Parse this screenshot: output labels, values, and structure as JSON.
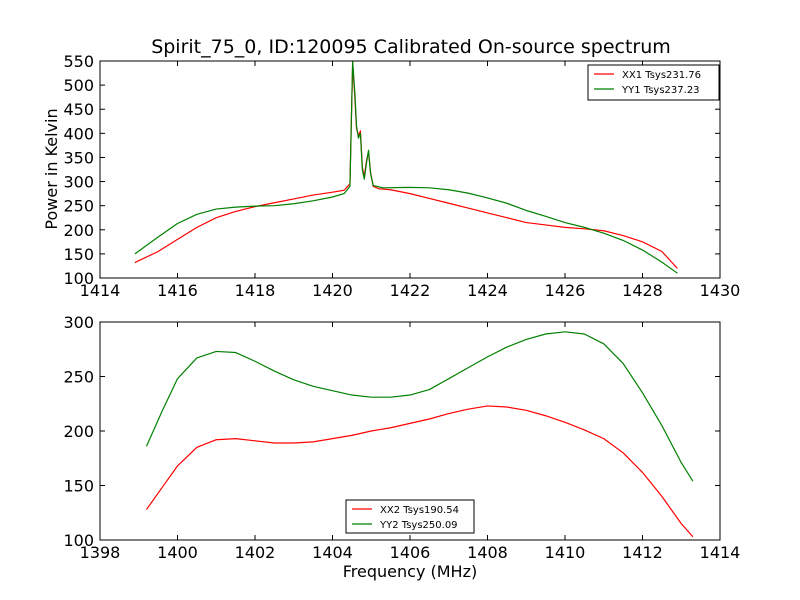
{
  "chart_data": [
    {
      "type": "line",
      "title": "Spirit_75_0, ID:120095 Calibrated On-source spectrum",
      "xlabel": "",
      "ylabel": "Power in Kelvin",
      "xlim": [
        1414,
        1430
      ],
      "ylim": [
        100,
        550
      ],
      "xticks": [
        "1414",
        "1416",
        "1418",
        "1420",
        "1422",
        "1424",
        "1426",
        "1428",
        "1430"
      ],
      "yticks": [
        "100",
        "150",
        "200",
        "250",
        "300",
        "350",
        "400",
        "450",
        "500",
        "550"
      ],
      "grid": false,
      "legend_position": "top-right",
      "series": [
        {
          "name": "XX1 Tsys231.76",
          "color": "#ff0000",
          "points": [
            [
              1414.9,
              132
            ],
            [
              1415.5,
              155
            ],
            [
              1416,
              180
            ],
            [
              1416.5,
              205
            ],
            [
              1417,
              225
            ],
            [
              1417.5,
              238
            ],
            [
              1418,
              248
            ],
            [
              1418.5,
              256
            ],
            [
              1419,
              264
            ],
            [
              1419.5,
              272
            ],
            [
              1420,
              278
            ],
            [
              1420.3,
              282
            ],
            [
              1420.45,
              295
            ],
            [
              1420.52,
              545
            ],
            [
              1420.58,
              470
            ],
            [
              1420.62,
              410
            ],
            [
              1420.67,
              395
            ],
            [
              1420.72,
              405
            ],
            [
              1420.77,
              330
            ],
            [
              1420.82,
              310
            ],
            [
              1420.88,
              345
            ],
            [
              1420.93,
              360
            ],
            [
              1420.98,
              320
            ],
            [
              1421.05,
              290
            ],
            [
              1421.2,
              285
            ],
            [
              1421.5,
              283
            ],
            [
              1422,
              275
            ],
            [
              1422.5,
              265
            ],
            [
              1423,
              255
            ],
            [
              1423.5,
              245
            ],
            [
              1424,
              235
            ],
            [
              1424.5,
              225
            ],
            [
              1425,
              215
            ],
            [
              1425.5,
              210
            ],
            [
              1426,
              205
            ],
            [
              1426.5,
              202
            ],
            [
              1427,
              198
            ],
            [
              1427.5,
              188
            ],
            [
              1428,
              175
            ],
            [
              1428.5,
              155
            ],
            [
              1428.9,
              120
            ]
          ]
        },
        {
          "name": "YY1 Tsys237.23",
          "color": "#008000",
          "points": [
            [
              1414.9,
              150
            ],
            [
              1415.5,
              185
            ],
            [
              1416,
              213
            ],
            [
              1416.5,
              232
            ],
            [
              1417,
              243
            ],
            [
              1417.5,
              247
            ],
            [
              1418,
              249
            ],
            [
              1418.5,
              250
            ],
            [
              1419,
              254
            ],
            [
              1419.5,
              260
            ],
            [
              1420,
              268
            ],
            [
              1420.3,
              275
            ],
            [
              1420.45,
              290
            ],
            [
              1420.52,
              550
            ],
            [
              1420.58,
              480
            ],
            [
              1420.62,
              415
            ],
            [
              1420.67,
              390
            ],
            [
              1420.72,
              400
            ],
            [
              1420.77,
              325
            ],
            [
              1420.82,
              305
            ],
            [
              1420.88,
              340
            ],
            [
              1420.93,
              365
            ],
            [
              1420.98,
              318
            ],
            [
              1421.05,
              292
            ],
            [
              1421.3,
              287
            ],
            [
              1422,
              288
            ],
            [
              1422.5,
              287
            ],
            [
              1423,
              283
            ],
            [
              1423.5,
              276
            ],
            [
              1424,
              266
            ],
            [
              1424.5,
              255
            ],
            [
              1425,
              240
            ],
            [
              1425.5,
              228
            ],
            [
              1426,
              215
            ],
            [
              1426.5,
              205
            ],
            [
              1427,
              193
            ],
            [
              1427.5,
              178
            ],
            [
              1428,
              158
            ],
            [
              1428.5,
              133
            ],
            [
              1428.9,
              110
            ]
          ]
        }
      ]
    },
    {
      "type": "line",
      "title": "",
      "xlabel": "Frequency (MHz)",
      "ylabel": "",
      "xlim": [
        1398,
        1414
      ],
      "ylim": [
        100,
        300
      ],
      "xticks": [
        "1398",
        "1400",
        "1402",
        "1404",
        "1406",
        "1408",
        "1410",
        "1412",
        "1414"
      ],
      "yticks": [
        "100",
        "150",
        "200",
        "250",
        "300"
      ],
      "grid": false,
      "legend_position": "bottom-center",
      "series": [
        {
          "name": "XX2 Tsys190.54",
          "color": "#ff0000",
          "points": [
            [
              1399.2,
              128
            ],
            [
              1399.6,
              148
            ],
            [
              1400,
              168
            ],
            [
              1400.5,
              185
            ],
            [
              1401,
              192
            ],
            [
              1401.5,
              193
            ],
            [
              1402,
              191
            ],
            [
              1402.5,
              189
            ],
            [
              1403,
              189
            ],
            [
              1403.5,
              190
            ],
            [
              1404,
              193
            ],
            [
              1404.5,
              196
            ],
            [
              1405,
              200
            ],
            [
              1405.5,
              203
            ],
            [
              1406,
              207
            ],
            [
              1406.5,
              211
            ],
            [
              1407,
              216
            ],
            [
              1407.5,
              220
            ],
            [
              1408,
              223
            ],
            [
              1408.5,
              222
            ],
            [
              1409,
              219
            ],
            [
              1409.5,
              214
            ],
            [
              1410,
              208
            ],
            [
              1410.5,
              201
            ],
            [
              1411,
              193
            ],
            [
              1411.5,
              180
            ],
            [
              1412,
              162
            ],
            [
              1412.5,
              140
            ],
            [
              1413,
              115
            ],
            [
              1413.3,
              103
            ]
          ]
        },
        {
          "name": "YY2 Tsys250.09",
          "color": "#008000",
          "points": [
            [
              1399.2,
              186
            ],
            [
              1399.6,
              218
            ],
            [
              1400,
              248
            ],
            [
              1400.5,
              267
            ],
            [
              1401,
              273
            ],
            [
              1401.5,
              272
            ],
            [
              1402,
              264
            ],
            [
              1402.5,
              255
            ],
            [
              1403,
              247
            ],
            [
              1403.5,
              241
            ],
            [
              1404,
              237
            ],
            [
              1404.5,
              233
            ],
            [
              1405,
              231
            ],
            [
              1405.5,
              231
            ],
            [
              1406,
              233
            ],
            [
              1406.5,
              238
            ],
            [
              1407,
              248
            ],
            [
              1407.5,
              258
            ],
            [
              1408,
              268
            ],
            [
              1408.5,
              277
            ],
            [
              1409,
              284
            ],
            [
              1409.5,
              289
            ],
            [
              1410,
              291
            ],
            [
              1410.5,
              289
            ],
            [
              1411,
              280
            ],
            [
              1411.5,
              262
            ],
            [
              1412,
              235
            ],
            [
              1412.5,
              205
            ],
            [
              1413,
              171
            ],
            [
              1413.3,
              154
            ]
          ]
        }
      ]
    }
  ]
}
